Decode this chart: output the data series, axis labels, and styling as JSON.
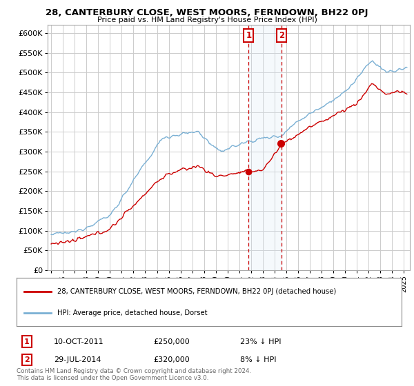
{
  "title": "28, CANTERBURY CLOSE, WEST MOORS, FERNDOWN, BH22 0PJ",
  "subtitle": "Price paid vs. HM Land Registry's House Price Index (HPI)",
  "ylim": [
    0,
    620000
  ],
  "sale1_year": 2011.792,
  "sale1_price": 250000,
  "sale1_pct": "23%",
  "sale2_year": 2014.583,
  "sale2_price": 320000,
  "sale2_pct": "8%",
  "sale1_date": "10-OCT-2011",
  "sale2_date": "29-JUL-2014",
  "legend_line1": "28, CANTERBURY CLOSE, WEST MOORS, FERNDOWN, BH22 0PJ (detached house)",
  "legend_line2": "HPI: Average price, detached house, Dorset",
  "footnote": "Contains HM Land Registry data © Crown copyright and database right 2024.\nThis data is licensed under the Open Government Licence v3.0.",
  "line_color_red": "#cc0000",
  "line_color_blue": "#7ab0d4",
  "shade_color": "#d8e8f5",
  "marker_color_red": "#cc0000",
  "bg_color": "#ffffff",
  "grid_color": "#cccccc",
  "box_color": "#cc0000"
}
